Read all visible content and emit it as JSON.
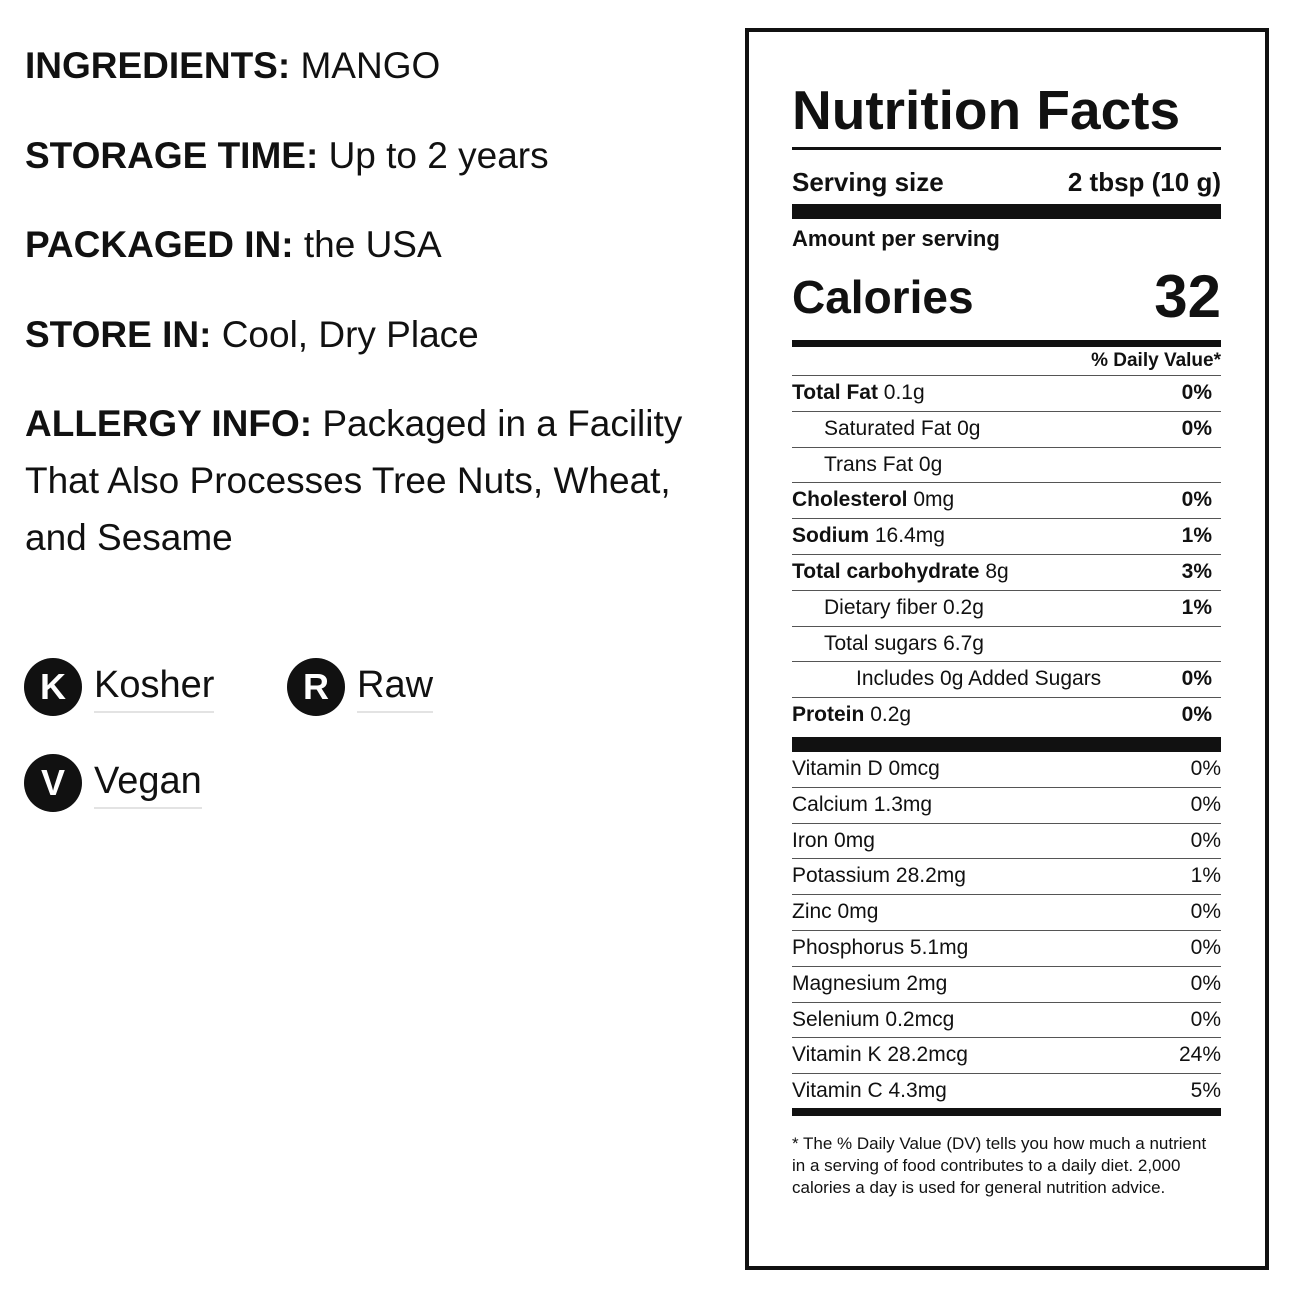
{
  "info": [
    {
      "label": "INGREDIENTS:",
      "value": "MANGO"
    },
    {
      "label": "STORAGE TIME:",
      "value": "Up to 2 years"
    },
    {
      "label": "PACKAGED IN:",
      "value": "the USA"
    },
    {
      "label": "STORE IN:",
      "value": "Cool, Dry Place"
    },
    {
      "label": "ALLERGY INFO:",
      "value": "Packaged in a Facility That Also Processes Tree Nuts, Wheat, and Sesame"
    }
  ],
  "badges": [
    {
      "icon": "K",
      "label": "Kosher"
    },
    {
      "icon": "R",
      "label": "Raw"
    },
    {
      "icon": "V",
      "label": "Vegan"
    }
  ],
  "nutrition": {
    "title": "Nutrition Facts",
    "serving_size_label": "Serving size",
    "serving_size": "2 tbsp (10 g)",
    "amount_per_serving": "Amount per serving",
    "calories_label": "Calories",
    "calories": 32,
    "dv_header": "% Daily Value*",
    "nutrients": [
      {
        "name": "Total Fat",
        "amount": "0.1g",
        "dv": "0%"
      },
      {
        "name": "Saturated Fat",
        "amount": "0g",
        "dv": "0%"
      },
      {
        "name": "Trans Fat",
        "amount": "0g"
      },
      {
        "name": "Cholesterol",
        "amount": "0mg",
        "dv": "0%"
      },
      {
        "name": "Sodium",
        "amount": "16.4mg",
        "dv": "1%"
      },
      {
        "name": "Total carbohydrate",
        "amount": "8g",
        "dv": "3%"
      },
      {
        "name": "Dietary fiber",
        "amount": "0.2g",
        "dv": "1%"
      },
      {
        "name": "Total sugars",
        "amount": "6.7g"
      },
      {
        "name": "Includes 0g Added Sugars",
        "dv": "0%"
      },
      {
        "name": "Protein",
        "amount": "0.2g",
        "dv": "0%"
      }
    ],
    "vitamins": [
      {
        "name": "Vitamin D",
        "amount": "0mcg",
        "dv": "0%"
      },
      {
        "name": "Calcium",
        "amount": "1.3mg",
        "dv": "0%"
      },
      {
        "name": "Iron",
        "amount": "0mg",
        "dv": "0%"
      },
      {
        "name": "Potassium",
        "amount": "28.2mg",
        "dv": "1%"
      },
      {
        "name": "Zinc",
        "amount": "0mg",
        "dv": "0%"
      },
      {
        "name": "Phosphorus",
        "amount": "5.1mg",
        "dv": "0%"
      },
      {
        "name": "Magnesium",
        "amount": "2mg",
        "dv": "0%"
      },
      {
        "name": "Selenium",
        "amount": "0.2mcg",
        "dv": "0%"
      },
      {
        "name": "Vitamin K",
        "amount": "28.2mcg",
        "dv": "24%"
      },
      {
        "name": "Vitamin C",
        "amount": "4.3mg",
        "dv": "5%"
      }
    ],
    "footnote": "* The % Daily Value (DV) tells you how much a nutrient in a serving of food contributes to a daily diet. 2,000 calories a day is used for general nutrition advice."
  }
}
